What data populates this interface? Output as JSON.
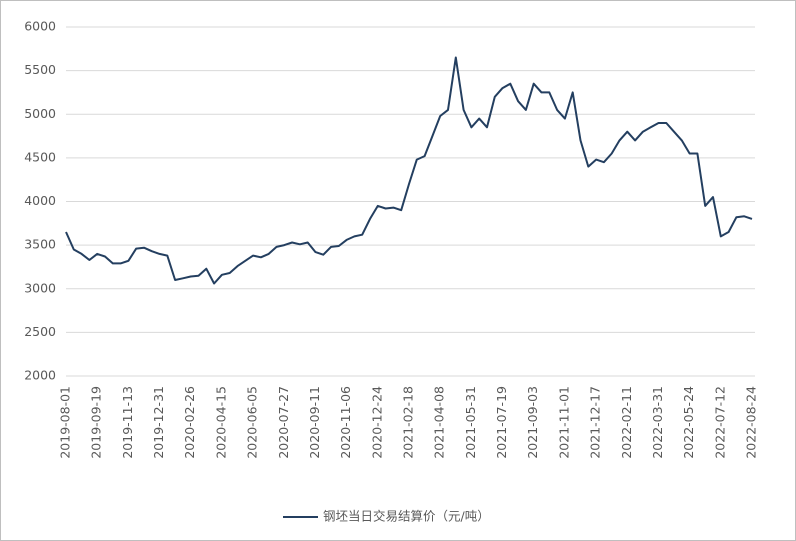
{
  "chart_data": {
    "type": "line",
    "categories": [
      "2019-08-01",
      null,
      null,
      null,
      "2019-09-19",
      null,
      null,
      null,
      "2019-11-13",
      null,
      null,
      null,
      "2019-12-31",
      null,
      null,
      null,
      "2020-02-26",
      null,
      null,
      null,
      "2020-04-15",
      null,
      null,
      null,
      "2020-06-05",
      null,
      null,
      null,
      "2020-07-27",
      null,
      null,
      null,
      "2020-09-11",
      null,
      null,
      null,
      "2020-11-06",
      null,
      null,
      null,
      "2020-12-24",
      null,
      null,
      null,
      "2021-02-18",
      null,
      null,
      null,
      "2021-04-08",
      null,
      null,
      null,
      "2021-05-31",
      null,
      null,
      null,
      "2021-07-19",
      null,
      null,
      null,
      "2021-09-03",
      null,
      null,
      null,
      "2021-11-01",
      null,
      null,
      null,
      "2021-12-17",
      null,
      null,
      null,
      "2022-02-11",
      null,
      null,
      null,
      "2022-03-31",
      null,
      null,
      null,
      "2022-05-24",
      null,
      null,
      null,
      "2022-07-12",
      null,
      null,
      null,
      "2022-08-24"
    ],
    "series": [
      {
        "name": "钢坯当日交易结算价（元/吨）",
        "color": "#243f60",
        "values": [
          3650,
          3450,
          3400,
          3330,
          3400,
          3370,
          3290,
          3290,
          3320,
          3460,
          3470,
          3430,
          3400,
          3380,
          3100,
          3120,
          3140,
          3150,
          3230,
          3060,
          3160,
          3180,
          3260,
          3320,
          3380,
          3360,
          3400,
          3480,
          3500,
          3530,
          3510,
          3530,
          3420,
          3390,
          3480,
          3490,
          3560,
          3600,
          3620,
          3800,
          3950,
          3920,
          3930,
          3900,
          4200,
          4480,
          4520,
          4750,
          4980,
          5050,
          5650,
          5050,
          4850,
          4950,
          4850,
          5200,
          5300,
          5350,
          5150,
          5050,
          5350,
          5250,
          5250,
          5050,
          4950,
          5250,
          4700,
          4400,
          4480,
          4450,
          4550,
          4700,
          4800,
          4700,
          4800,
          4850,
          4900,
          4900,
          4800,
          4700,
          4550,
          4550,
          3950,
          4050,
          3600,
          3650,
          3820,
          3830,
          3800
        ]
      }
    ],
    "ylim": [
      2000,
      6000
    ],
    "yticks": [
      2000,
      2500,
      3000,
      3500,
      4000,
      4500,
      5000,
      5500,
      6000
    ],
    "grid": true,
    "legend": "bottom"
  }
}
